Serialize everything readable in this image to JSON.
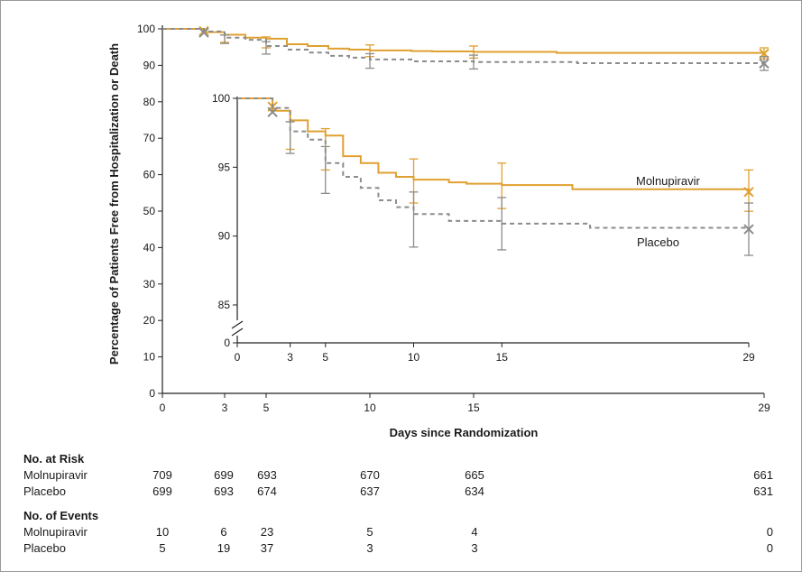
{
  "colors": {
    "molnupiravir": "#e0a030",
    "placebo": "#8c8c8c",
    "axis": "#222222"
  },
  "chart_data": {
    "type": "line",
    "chart_style": "kaplan-meier step curves with inset zoom",
    "xlabel": "Days since Randomization",
    "ylabel": "Percentage of Patients Free from Hospitalization or Death",
    "xlim": [
      0,
      29
    ],
    "ylim": [
      0,
      100
    ],
    "xticks": [
      "0",
      "3",
      "5",
      "10",
      "15",
      "29"
    ],
    "yticks": [
      "0",
      "10",
      "20",
      "30",
      "40",
      "50",
      "60",
      "70",
      "80",
      "90",
      "100"
    ],
    "series": [
      {
        "name": "Molnupiravir",
        "color": "#e0a030",
        "dash": "solid",
        "x": [
          0,
          2,
          3,
          4,
          5,
          6,
          7,
          8,
          9,
          10,
          12,
          13,
          15,
          19,
          29
        ],
        "y": [
          100,
          99.1,
          98.4,
          97.6,
          97.3,
          95.8,
          95.3,
          94.6,
          94.3,
          94.1,
          93.9,
          93.8,
          93.7,
          93.4,
          93.2
        ],
        "ci_points": [
          {
            "x": 3,
            "y": 97.3,
            "lo": 96.3,
            "hi": 98.3
          },
          {
            "x": 5,
            "y": 96.3,
            "lo": 94.8,
            "hi": 97.8
          },
          {
            "x": 10,
            "y": 94.2,
            "lo": 92.4,
            "hi": 95.6
          },
          {
            "x": 15,
            "y": 93.7,
            "lo": 92.0,
            "hi": 95.3
          },
          {
            "x": 29,
            "y": 93.2,
            "lo": 91.8,
            "hi": 94.8
          }
        ]
      },
      {
        "name": "Placebo",
        "color": "#8c8c8c",
        "dash": "dashed",
        "x": [
          0,
          2,
          3,
          4,
          5,
          6,
          7,
          8,
          9,
          10,
          12,
          15,
          20,
          29
        ],
        "y": [
          100,
          99.3,
          97.6,
          97.0,
          95.3,
          94.3,
          93.5,
          92.6,
          92.1,
          91.6,
          91.1,
          90.9,
          90.6,
          90.5
        ],
        "ci_points": [
          {
            "x": 3,
            "y": 97.2,
            "lo": 96.0,
            "hi": 98.3
          },
          {
            "x": 5,
            "y": 94.8,
            "lo": 93.1,
            "hi": 96.5
          },
          {
            "x": 10,
            "y": 91.1,
            "lo": 89.2,
            "hi": 93.2
          },
          {
            "x": 15,
            "y": 90.9,
            "lo": 89.0,
            "hi": 92.8
          },
          {
            "x": 29,
            "y": 90.5,
            "lo": 88.6,
            "hi": 92.4
          }
        ]
      }
    ],
    "censor_marks": {
      "molnupiravir": [
        {
          "x": 2,
          "y": 99.4
        },
        {
          "x": 29,
          "y": 93.2
        }
      ],
      "placebo": [
        {
          "x": 2,
          "y": 99.0
        },
        {
          "x": 29,
          "y": 90.5
        }
      ]
    },
    "inset": {
      "xticks": [
        "0",
        "3",
        "5",
        "10",
        "15",
        "29"
      ],
      "yticks": [
        "0",
        "85",
        "90",
        "95",
        "100"
      ],
      "ylim": [
        85,
        100
      ],
      "y_break": true,
      "labels": [
        "Molnupiravir",
        "Placebo"
      ]
    },
    "table": {
      "at_risk_title": "No. at Risk",
      "events_title": "No. of Events",
      "columns_days": [
        0,
        3,
        5,
        10,
        15,
        29
      ],
      "at_risk": [
        {
          "label": "Molnupiravir",
          "values": [
            "709",
            "699",
            "693",
            "670",
            "665",
            "661"
          ]
        },
        {
          "label": "Placebo",
          "values": [
            "699",
            "693",
            "674",
            "637",
            "634",
            "631"
          ]
        }
      ],
      "events": [
        {
          "label": "Molnupiravir",
          "values": [
            "10",
            "6",
            "23",
            "5",
            "4",
            "0"
          ]
        },
        {
          "label": "Placebo",
          "values": [
            "5",
            "19",
            "37",
            "3",
            "3",
            "0"
          ]
        }
      ]
    }
  }
}
